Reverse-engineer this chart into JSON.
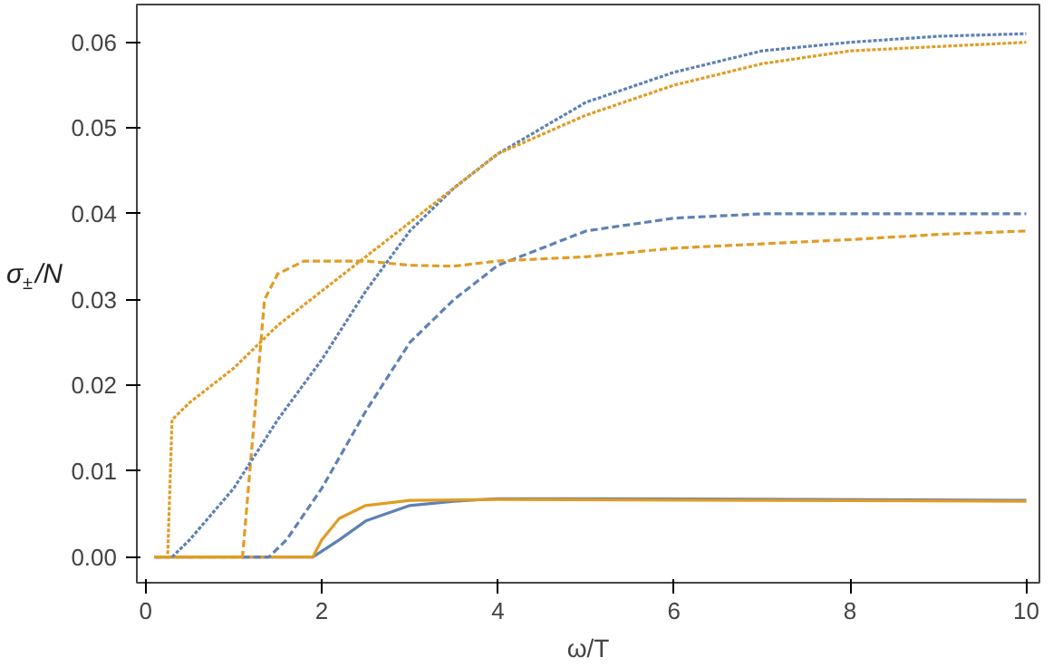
{
  "chart_data": {
    "type": "line",
    "xlabel": "ω/T",
    "ylabel": "σ$_{±}$/N",
    "xlim": [
      -0.1,
      10.15
    ],
    "ylim": [
      -0.003,
      0.0644
    ],
    "xticks": [
      0,
      2,
      4,
      6,
      8,
      10
    ],
    "yticks": [
      {
        "value": 0,
        "label": "0.00"
      },
      {
        "value": 0.01,
        "label": "0.01"
      },
      {
        "value": 0.02,
        "label": "0.02"
      },
      {
        "value": 0.03,
        "label": "0.03"
      },
      {
        "value": 0.04,
        "label": "0.04"
      },
      {
        "value": 0.05,
        "label": "0.05"
      },
      {
        "value": 0.06,
        "label": "0.06"
      }
    ],
    "grid": false,
    "series": [
      {
        "color": "#5e81b5",
        "line_style": "solid",
        "x": [
          0.1,
          1.9,
          2.2,
          2.5,
          3,
          3.5,
          4,
          5,
          10
        ],
        "values": [
          0,
          0,
          0.002,
          0.0042,
          0.006,
          0.0065,
          0.0068,
          0.0068,
          0.0066
        ]
      },
      {
        "color": "#e19c24",
        "line_style": "solid",
        "x": [
          0.1,
          1.9,
          2.0,
          2.2,
          2.5,
          3,
          4,
          10
        ],
        "values": [
          0,
          0,
          0.002,
          0.0045,
          0.006,
          0.0066,
          0.0067,
          0.0065
        ]
      },
      {
        "color": "#5e81b5",
        "line_style": "dashed",
        "x": [
          1.1,
          1.4,
          1.6,
          2,
          2.5,
          3,
          3.5,
          4,
          5,
          6,
          7,
          8,
          10
        ],
        "values": [
          0,
          0,
          0.002,
          0.008,
          0.017,
          0.025,
          0.03,
          0.034,
          0.038,
          0.0395,
          0.04,
          0.04,
          0.04
        ]
      },
      {
        "color": "#e19c24",
        "line_style": "dashed",
        "x": [
          0.1,
          1.1,
          1.35,
          1.5,
          1.8,
          2.5,
          3,
          3.5,
          4,
          5,
          6,
          7,
          8,
          9,
          10
        ],
        "values": [
          0,
          0,
          0.03,
          0.033,
          0.0345,
          0.0345,
          0.034,
          0.0339,
          0.0345,
          0.035,
          0.036,
          0.0365,
          0.037,
          0.0376,
          0.038
        ]
      },
      {
        "color": "#5e81b5",
        "line_style": "dotted",
        "x": [
          0.3,
          0.5,
          1,
          1.5,
          2,
          2.5,
          3,
          3.5,
          4,
          5,
          6,
          7,
          8,
          9,
          10
        ],
        "values": [
          0,
          0.002,
          0.008,
          0.016,
          0.023,
          0.031,
          0.038,
          0.043,
          0.047,
          0.053,
          0.0565,
          0.059,
          0.06,
          0.0607,
          0.061
        ]
      },
      {
        "color": "#e19c24",
        "line_style": "dotted",
        "x": [
          0.1,
          0.25,
          0.3,
          0.5,
          1,
          1.5,
          2,
          2.5,
          3,
          3.5,
          4,
          5,
          6,
          7,
          8,
          9,
          10
        ],
        "values": [
          0,
          0,
          0.016,
          0.018,
          0.022,
          0.027,
          0.031,
          0.035,
          0.039,
          0.043,
          0.047,
          0.0515,
          0.055,
          0.0575,
          0.059,
          0.0595,
          0.06
        ]
      }
    ]
  }
}
